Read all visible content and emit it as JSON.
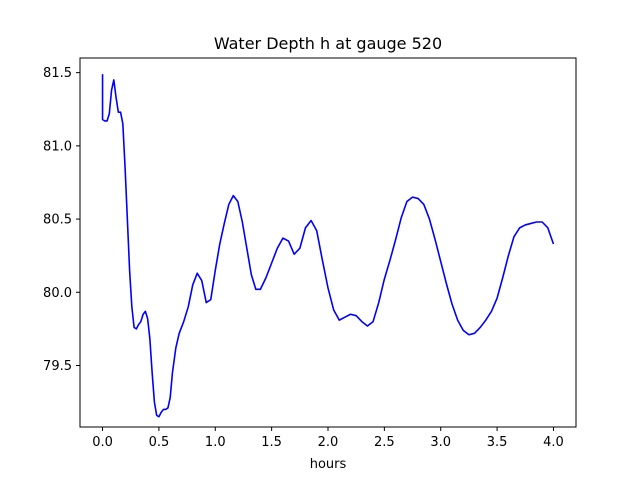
{
  "chart_data": {
    "type": "line",
    "title": "Water Depth h at gauge 520",
    "xlabel": "hours",
    "ylabel": "",
    "xlim": [
      -0.2,
      4.2
    ],
    "ylim": [
      79.08,
      81.6
    ],
    "x_ticks": [
      0.0,
      0.5,
      1.0,
      1.5,
      2.0,
      2.5,
      3.0,
      3.5,
      4.0
    ],
    "x_tick_labels": [
      "0.0",
      "0.5",
      "1.0",
      "1.5",
      "2.0",
      "2.5",
      "3.0",
      "3.5",
      "4.0"
    ],
    "y_ticks": [
      79.5,
      80.0,
      80.5,
      81.0,
      81.5
    ],
    "y_tick_labels": [
      "79.5",
      "80.0",
      "80.5",
      "81.0",
      "81.5"
    ],
    "grid": false,
    "series": [
      {
        "color": "#0000ff",
        "x": [
          0.0,
          0.0,
          0.02,
          0.04,
          0.06,
          0.08,
          0.1,
          0.12,
          0.14,
          0.16,
          0.18,
          0.2,
          0.22,
          0.24,
          0.26,
          0.28,
          0.3,
          0.32,
          0.34,
          0.36,
          0.38,
          0.4,
          0.42,
          0.44,
          0.46,
          0.48,
          0.5,
          0.52,
          0.54,
          0.56,
          0.58,
          0.6,
          0.62,
          0.65,
          0.68,
          0.72,
          0.76,
          0.8,
          0.84,
          0.88,
          0.92,
          0.96,
          1.0,
          1.04,
          1.08,
          1.12,
          1.16,
          1.2,
          1.24,
          1.28,
          1.32,
          1.36,
          1.4,
          1.45,
          1.5,
          1.55,
          1.6,
          1.65,
          1.7,
          1.75,
          1.8,
          1.85,
          1.9,
          1.95,
          2.0,
          2.05,
          2.1,
          2.15,
          2.2,
          2.25,
          2.3,
          2.35,
          2.4,
          2.45,
          2.5,
          2.55,
          2.6,
          2.65,
          2.7,
          2.75,
          2.8,
          2.85,
          2.9,
          2.95,
          3.0,
          3.05,
          3.1,
          3.15,
          3.2,
          3.25,
          3.3,
          3.35,
          3.4,
          3.45,
          3.5,
          3.55,
          3.6,
          3.65,
          3.7,
          3.75,
          3.8,
          3.85,
          3.9,
          3.95,
          4.0
        ],
        "y": [
          81.49,
          81.18,
          81.17,
          81.17,
          81.22,
          81.38,
          81.45,
          81.33,
          81.23,
          81.23,
          81.15,
          80.85,
          80.5,
          80.15,
          79.9,
          79.76,
          79.75,
          79.78,
          79.8,
          79.85,
          79.87,
          79.82,
          79.68,
          79.45,
          79.25,
          79.16,
          79.15,
          79.18,
          79.2,
          79.2,
          79.21,
          79.28,
          79.45,
          79.62,
          79.72,
          79.8,
          79.9,
          80.05,
          80.13,
          80.08,
          79.93,
          79.95,
          80.15,
          80.33,
          80.47,
          80.6,
          80.66,
          80.62,
          80.48,
          80.3,
          80.12,
          80.02,
          80.02,
          80.1,
          80.2,
          80.3,
          80.37,
          80.35,
          80.26,
          80.3,
          80.44,
          80.49,
          80.42,
          80.22,
          80.03,
          79.88,
          79.81,
          79.83,
          79.85,
          79.84,
          79.8,
          79.77,
          79.8,
          79.93,
          80.09,
          80.22,
          80.36,
          80.51,
          80.62,
          80.65,
          80.64,
          80.6,
          80.5,
          80.36,
          80.21,
          80.06,
          79.92,
          79.81,
          79.74,
          79.71,
          79.72,
          79.76,
          79.81,
          79.87,
          79.96,
          80.1,
          80.25,
          80.38,
          80.44,
          80.46,
          80.47,
          80.48,
          80.48,
          80.44,
          80.33
        ]
      }
    ]
  }
}
